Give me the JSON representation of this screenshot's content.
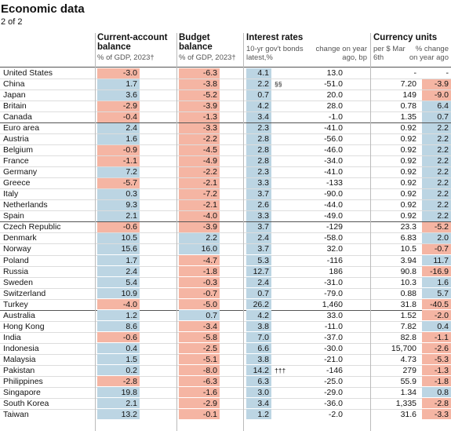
{
  "header": {
    "title": "Economic data",
    "subtitle": "2 of 2"
  },
  "columns": {
    "current_account": {
      "title": "Current-account balance",
      "sub": "% of GDP, 2023†"
    },
    "budget": {
      "title": "Budget balance",
      "sub": "% of GDP, 2023†"
    },
    "interest": {
      "title": "Interest rates",
      "rate_sub": "10-yr gov't bonds latest,%",
      "change_sub": "change on year ago, bp"
    },
    "currency": {
      "title": "Currency units",
      "per_usd_sub": "per $ Mar 6th",
      "change_sub": "% change on year ago"
    }
  },
  "table": {
    "rows": [
      {
        "name": "United States",
        "ca": "-3.0",
        "budget": "-6.3",
        "rate": "4.1",
        "rate_change": "13.0",
        "per_usd": "-",
        "fx_change": "-"
      },
      {
        "name": "China",
        "ca": "1.7",
        "budget": "-3.8",
        "rate": "2.2",
        "rate_note": "§§",
        "rate_change": "-51.0",
        "per_usd": "7.20",
        "fx_change": "-3.9"
      },
      {
        "name": "Japan",
        "ca": "3.6",
        "budget": "-5.2",
        "rate": "0.7",
        "rate_change": "20.0",
        "per_usd": "149",
        "fx_change": "-9.0"
      },
      {
        "name": "Britain",
        "ca": "-2.9",
        "budget": "-3.9",
        "rate": "4.2",
        "rate_change": "28.0",
        "per_usd": "0.78",
        "fx_change": "6.4"
      },
      {
        "name": "Canada",
        "ca": "-0.4",
        "budget": "-1.3",
        "rate": "3.4",
        "rate_change": "-1.0",
        "per_usd": "1.35",
        "fx_change": "0.7"
      },
      {
        "name": "Euro area",
        "ca": "2.4",
        "budget": "-3.3",
        "rate": "2.3",
        "rate_change": "-41.0",
        "per_usd": "0.92",
        "fx_change": "2.2"
      },
      {
        "name": "Austria",
        "ca": "1.6",
        "budget": "-2.2",
        "rate": "2.8",
        "rate_change": "-56.0",
        "per_usd": "0.92",
        "fx_change": "2.2"
      },
      {
        "name": "Belgium",
        "ca": "-0.9",
        "budget": "-4.5",
        "rate": "2.8",
        "rate_change": "-46.0",
        "per_usd": "0.92",
        "fx_change": "2.2"
      },
      {
        "name": "France",
        "ca": "-1.1",
        "budget": "-4.9",
        "rate": "2.8",
        "rate_change": "-34.0",
        "per_usd": "0.92",
        "fx_change": "2.2"
      },
      {
        "name": "Germany",
        "ca": "7.2",
        "budget": "-2.2",
        "rate": "2.3",
        "rate_change": "-41.0",
        "per_usd": "0.92",
        "fx_change": "2.2"
      },
      {
        "name": "Greece",
        "ca": "-5.7",
        "budget": "-2.1",
        "rate": "3.3",
        "rate_change": "-133",
        "per_usd": "0.92",
        "fx_change": "2.2"
      },
      {
        "name": "Italy",
        "ca": "0.3",
        "budget": "-7.2",
        "rate": "3.7",
        "rate_change": "-90.0",
        "per_usd": "0.92",
        "fx_change": "2.2"
      },
      {
        "name": "Netherlands",
        "ca": "9.3",
        "budget": "-2.1",
        "rate": "2.6",
        "rate_change": "-44.0",
        "per_usd": "0.92",
        "fx_change": "2.2"
      },
      {
        "name": "Spain",
        "ca": "2.1",
        "budget": "-4.0",
        "rate": "3.3",
        "rate_change": "-49.0",
        "per_usd": "0.92",
        "fx_change": "2.2"
      },
      {
        "name": "Czech Republic",
        "ca": "-0.6",
        "budget": "-3.9",
        "rate": "3.7",
        "rate_change": "-129",
        "per_usd": "23.3",
        "fx_change": "-5.2"
      },
      {
        "name": "Denmark",
        "ca": "10.5",
        "budget": "2.2",
        "rate": "2.4",
        "rate_change": "-58.0",
        "per_usd": "6.83",
        "fx_change": "2.0"
      },
      {
        "name": "Norway",
        "ca": "15.6",
        "budget": "16.0",
        "rate": "3.7",
        "rate_change": "32.0",
        "per_usd": "10.5",
        "fx_change": "-0.7"
      },
      {
        "name": "Poland",
        "ca": "1.7",
        "budget": "-4.7",
        "rate": "5.3",
        "rate_change": "-116",
        "per_usd": "3.94",
        "fx_change": "11.7"
      },
      {
        "name": "Russia",
        "ca": "2.4",
        "budget": "-1.8",
        "rate": "12.7",
        "rate_change": "186",
        "per_usd": "90.8",
        "fx_change": "-16.9"
      },
      {
        "name": "Sweden",
        "ca": "5.4",
        "budget": "-0.3",
        "rate": "2.4",
        "rate_change": "-31.0",
        "per_usd": "10.3",
        "fx_change": "1.6"
      },
      {
        "name": "Switzerland",
        "ca": "10.9",
        "budget": "-0.7",
        "rate": "0.7",
        "rate_change": "-79.0",
        "per_usd": "0.88",
        "fx_change": "5.7"
      },
      {
        "name": "Turkey",
        "ca": "-4.0",
        "budget": "-5.0",
        "rate": "26.2",
        "rate_change": "1,460",
        "per_usd": "31.8",
        "fx_change": "-40.5"
      },
      {
        "name": "Australia",
        "ca": "1.2",
        "budget": "0.7",
        "rate": "4.2",
        "rate_change": "33.0",
        "per_usd": "1.52",
        "fx_change": "-2.0"
      },
      {
        "name": "Hong Kong",
        "ca": "8.6",
        "budget": "-3.4",
        "rate": "3.8",
        "rate_change": "-11.0",
        "per_usd": "7.82",
        "fx_change": "0.4"
      },
      {
        "name": "India",
        "ca": "-0.6",
        "budget": "-5.8",
        "rate": "7.0",
        "rate_change": "-37.0",
        "per_usd": "82.8",
        "fx_change": "-1.1"
      },
      {
        "name": "Indonesia",
        "ca": "0.4",
        "budget": "-2.5",
        "rate": "6.6",
        "rate_change": "-30.0",
        "per_usd": "15,700",
        "fx_change": "-2.6"
      },
      {
        "name": "Malaysia",
        "ca": "1.5",
        "budget": "-5.1",
        "rate": "3.8",
        "rate_change": "-21.0",
        "per_usd": "4.73",
        "fx_change": "-5.3"
      },
      {
        "name": "Pakistan",
        "ca": "0.2",
        "budget": "-8.0",
        "rate": "14.2",
        "rate_note": "†††",
        "rate_change": "-146",
        "per_usd": "279",
        "fx_change": "-1.3"
      },
      {
        "name": "Philippines",
        "ca": "-2.8",
        "budget": "-6.3",
        "rate": "6.3",
        "rate_change": "-25.0",
        "per_usd": "55.9",
        "fx_change": "-1.8"
      },
      {
        "name": "Singapore",
        "ca": "19.8",
        "budget": "-1.6",
        "rate": "3.0",
        "rate_change": "-29.0",
        "per_usd": "1.34",
        "fx_change": "0.8"
      },
      {
        "name": "South Korea",
        "ca": "2.1",
        "budget": "-2.9",
        "rate": "3.4",
        "rate_change": "-36.0",
        "per_usd": "1,335",
        "fx_change": "-2.8"
      },
      {
        "name": "Taiwan",
        "ca": "13.2",
        "budget": "-0.1",
        "rate": "1.2",
        "rate_change": "-2.0",
        "per_usd": "31.6",
        "fx_change": "-3.3"
      }
    ]
  }
}
